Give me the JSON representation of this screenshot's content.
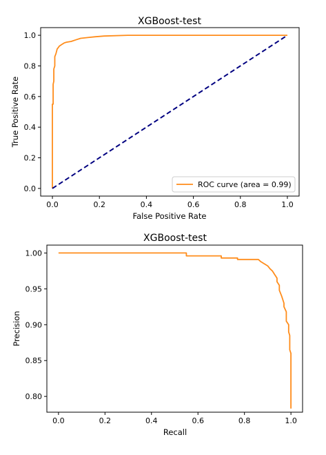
{
  "chart_data": [
    {
      "type": "line",
      "title": "XGBoost-test",
      "xlabel": "False Positive Rate",
      "ylabel": "True Positive Rate",
      "xlim": [
        -0.05,
        1.05
      ],
      "ylim": [
        -0.05,
        1.05
      ],
      "xticks": [
        "0.0",
        "0.2",
        "0.4",
        "0.6",
        "0.8",
        "1.0"
      ],
      "yticks": [
        "0.0",
        "0.2",
        "0.4",
        "0.6",
        "0.8",
        "1.0"
      ],
      "legend": {
        "placement": "bottom-right",
        "entries": [
          "ROC curve (area = 0.99)"
        ]
      },
      "grid": false,
      "series": [
        {
          "name": "ROC curve (area = 0.99)",
          "color": "#ff8c1a",
          "style": "solid",
          "x": [
            0,
            0,
            0.003,
            0.003,
            0.006,
            0.006,
            0.01,
            0.01,
            0.015,
            0.02,
            0.03,
            0.04,
            0.05,
            0.06,
            0.08,
            0.1,
            0.12,
            0.15,
            0.18,
            0.22,
            0.32,
            0.5,
            1.0
          ],
          "y": [
            0,
            0.55,
            0.55,
            0.68,
            0.7,
            0.78,
            0.8,
            0.86,
            0.88,
            0.91,
            0.93,
            0.94,
            0.95,
            0.955,
            0.96,
            0.97,
            0.98,
            0.985,
            0.99,
            0.995,
            1.0,
            1.0,
            1.0
          ]
        },
        {
          "name": "",
          "color": "#000080",
          "style": "dashed",
          "x": [
            0,
            1
          ],
          "y": [
            0,
            1
          ]
        }
      ]
    },
    {
      "type": "line",
      "title": "XGBoost-test",
      "xlabel": "Recall",
      "ylabel": "Precision",
      "xlim": [
        -0.05,
        1.05
      ],
      "ylim": [
        0.778,
        1.011
      ],
      "xticks": [
        "0.0",
        "0.2",
        "0.4",
        "0.6",
        "0.8",
        "1.0"
      ],
      "yticks": [
        "0.80",
        "0.85",
        "0.90",
        "0.95",
        "1.00"
      ],
      "grid": false,
      "series": [
        {
          "name": "",
          "color": "#ff8c1a",
          "style": "solid",
          "x": [
            0,
            0.55,
            0.55,
            0.7,
            0.7,
            0.77,
            0.77,
            0.86,
            0.87,
            0.88,
            0.9,
            0.91,
            0.92,
            0.93,
            0.94,
            0.94,
            0.95,
            0.95,
            0.96,
            0.965,
            0.97,
            0.97,
            0.98,
            0.98,
            0.99,
            0.99,
            0.995,
            0.995,
            1.0,
            1.0
          ],
          "y": [
            1.0,
            1.0,
            0.996,
            0.996,
            0.993,
            0.993,
            0.991,
            0.991,
            0.988,
            0.986,
            0.982,
            0.978,
            0.975,
            0.97,
            0.965,
            0.96,
            0.955,
            0.948,
            0.94,
            0.935,
            0.93,
            0.925,
            0.918,
            0.905,
            0.9,
            0.89,
            0.885,
            0.865,
            0.86,
            0.783
          ]
        }
      ]
    }
  ]
}
